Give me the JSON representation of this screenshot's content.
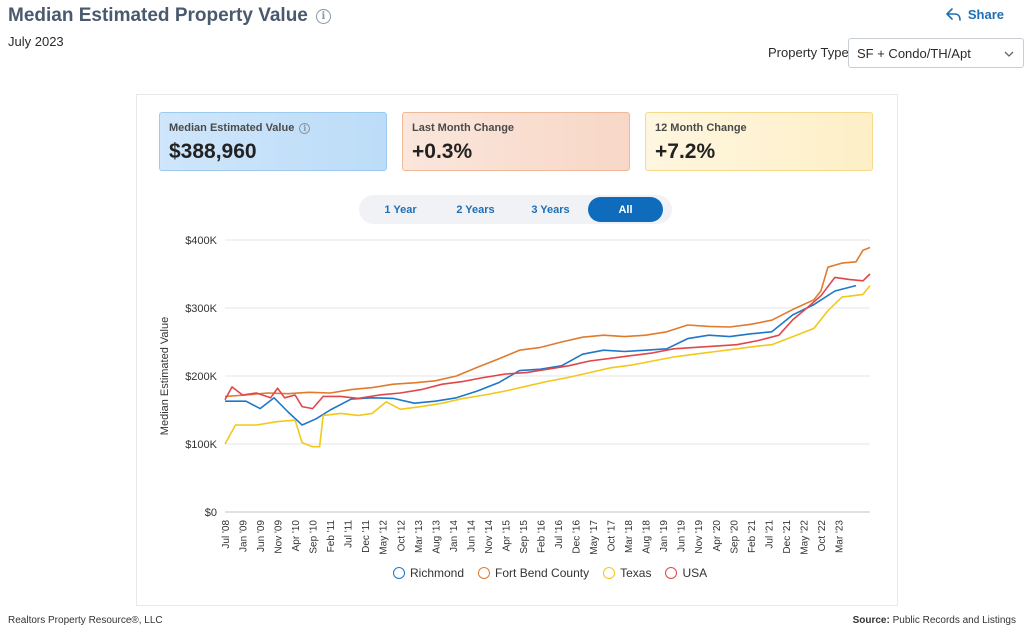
{
  "header": {
    "title": "Median Estimated Property Value",
    "subtitle": "July 2023",
    "share_label": "Share"
  },
  "filter": {
    "label": "Property Type",
    "selected": "SF + Condo/TH/Apt"
  },
  "stats": [
    {
      "label": "Median Estimated Value",
      "value": "$388,960"
    },
    {
      "label": "Last Month Change",
      "value": "+0.3%"
    },
    {
      "label": "12 Month Change",
      "value": "+7.2%"
    }
  ],
  "range_buttons": [
    "1 Year",
    "2 Years",
    "3 Years",
    "All"
  ],
  "range_active": "All",
  "legend": [
    {
      "name": "Richmond",
      "color": "#1f77c7"
    },
    {
      "name": "Fort Bend County",
      "color": "#e07b2e"
    },
    {
      "name": "Texas",
      "color": "#f2c81a"
    },
    {
      "name": "USA",
      "color": "#e0464b"
    }
  ],
  "footer": {
    "left": "Realtors Property Resource®, LLC",
    "source_label": "Source:",
    "source_value": "Public Records and Listings"
  },
  "chart_data": {
    "type": "line",
    "title": "Median Estimated Property Value",
    "xlabel": "",
    "ylabel": "Median Estimated Value",
    "ylim": [
      0,
      400000
    ],
    "yticks": [
      0,
      100000,
      200000,
      300000,
      400000
    ],
    "ytick_labels": [
      "$0",
      "$100K",
      "$200K",
      "$300K",
      "$400K"
    ],
    "xtick_labels": [
      "Jul '08",
      "Jan '09",
      "Jun '09",
      "Nov '09",
      "Apr '10",
      "Sep '10",
      "Feb '11",
      "Jul '11",
      "Dec '11",
      "May '12",
      "Oct '12",
      "Mar '13",
      "Aug '13",
      "Jan '14",
      "Jun '14",
      "Nov '14",
      "Apr '15",
      "Sep '15",
      "Feb '16",
      "Jul '16",
      "Dec '16",
      "May '17",
      "Oct '17",
      "Mar '18",
      "Aug '18",
      "Jan '19",
      "Jun '19",
      "Nov '19",
      "Apr '20",
      "Sep '20",
      "Feb '21",
      "Jul '21",
      "Dec '21",
      "May '22",
      "Oct '22",
      "Mar '23"
    ],
    "x_start": "2008-07",
    "x_end": "2023-07",
    "series": [
      {
        "name": "Richmond",
        "color": "#1f77c7",
        "points": [
          [
            0,
            163000
          ],
          [
            6,
            163000
          ],
          [
            10,
            152000
          ],
          [
            14,
            168000
          ],
          [
            18,
            147000
          ],
          [
            22,
            128000
          ],
          [
            26,
            137000
          ],
          [
            30,
            150000
          ],
          [
            36,
            166000
          ],
          [
            42,
            168000
          ],
          [
            48,
            167000
          ],
          [
            54,
            160000
          ],
          [
            60,
            163000
          ],
          [
            66,
            168000
          ],
          [
            72,
            178000
          ],
          [
            78,
            190000
          ],
          [
            84,
            208000
          ],
          [
            90,
            210000
          ],
          [
            96,
            215000
          ],
          [
            102,
            232000
          ],
          [
            108,
            238000
          ],
          [
            114,
            236000
          ],
          [
            120,
            238000
          ],
          [
            126,
            240000
          ],
          [
            132,
            255000
          ],
          [
            138,
            260000
          ],
          [
            144,
            258000
          ],
          [
            150,
            262000
          ],
          [
            156,
            265000
          ],
          [
            162,
            290000
          ],
          [
            168,
            305000
          ],
          [
            174,
            325000
          ],
          [
            180,
            333000
          ]
        ]
      },
      {
        "name": "Fort Bend County",
        "color": "#e07b2e",
        "points": [
          [
            0,
            170000
          ],
          [
            6,
            172000
          ],
          [
            12,
            175000
          ],
          [
            18,
            174000
          ],
          [
            24,
            176000
          ],
          [
            30,
            175000
          ],
          [
            36,
            180000
          ],
          [
            42,
            183000
          ],
          [
            48,
            188000
          ],
          [
            54,
            190000
          ],
          [
            60,
            193000
          ],
          [
            66,
            200000
          ],
          [
            72,
            213000
          ],
          [
            78,
            225000
          ],
          [
            84,
            238000
          ],
          [
            90,
            242000
          ],
          [
            96,
            250000
          ],
          [
            102,
            257000
          ],
          [
            108,
            260000
          ],
          [
            114,
            258000
          ],
          [
            120,
            260000
          ],
          [
            126,
            265000
          ],
          [
            132,
            275000
          ],
          [
            138,
            273000
          ],
          [
            144,
            272000
          ],
          [
            150,
            276000
          ],
          [
            156,
            282000
          ],
          [
            162,
            298000
          ],
          [
            168,
            312000
          ],
          [
            170,
            325000
          ],
          [
            172,
            360000
          ],
          [
            176,
            366000
          ],
          [
            180,
            368000
          ],
          [
            182,
            385000
          ],
          [
            184,
            388960
          ]
        ]
      },
      {
        "name": "Texas",
        "color": "#f2c81a",
        "points": [
          [
            0,
            100000
          ],
          [
            3,
            128000
          ],
          [
            9,
            128000
          ],
          [
            15,
            133000
          ],
          [
            20,
            135000
          ],
          [
            22,
            102000
          ],
          [
            25,
            96000
          ],
          [
            27,
            96000
          ],
          [
            28,
            142000
          ],
          [
            33,
            145000
          ],
          [
            38,
            142000
          ],
          [
            42,
            145000
          ],
          [
            46,
            162000
          ],
          [
            50,
            151000
          ],
          [
            56,
            155000
          ],
          [
            62,
            160000
          ],
          [
            68,
            167000
          ],
          [
            74,
            172000
          ],
          [
            80,
            178000
          ],
          [
            86,
            185000
          ],
          [
            92,
            192000
          ],
          [
            98,
            198000
          ],
          [
            104,
            205000
          ],
          [
            110,
            212000
          ],
          [
            116,
            216000
          ],
          [
            122,
            222000
          ],
          [
            128,
            228000
          ],
          [
            134,
            232000
          ],
          [
            140,
            236000
          ],
          [
            146,
            240000
          ],
          [
            152,
            244000
          ],
          [
            156,
            246000
          ],
          [
            162,
            258000
          ],
          [
            168,
            270000
          ],
          [
            172,
            296000
          ],
          [
            176,
            316000
          ],
          [
            182,
            320000
          ],
          [
            184,
            333000
          ]
        ]
      },
      {
        "name": "USA",
        "color": "#e0464b",
        "points": [
          [
            0,
            165000
          ],
          [
            2,
            184000
          ],
          [
            5,
            172000
          ],
          [
            9,
            175000
          ],
          [
            13,
            168000
          ],
          [
            15,
            182000
          ],
          [
            17,
            168000
          ],
          [
            20,
            172000
          ],
          [
            22,
            155000
          ],
          [
            25,
            152000
          ],
          [
            28,
            170000
          ],
          [
            33,
            170000
          ],
          [
            38,
            167000
          ],
          [
            44,
            172000
          ],
          [
            50,
            175000
          ],
          [
            56,
            180000
          ],
          [
            62,
            188000
          ],
          [
            68,
            192000
          ],
          [
            74,
            198000
          ],
          [
            80,
            203000
          ],
          [
            86,
            205000
          ],
          [
            92,
            210000
          ],
          [
            98,
            215000
          ],
          [
            104,
            222000
          ],
          [
            110,
            226000
          ],
          [
            116,
            230000
          ],
          [
            122,
            234000
          ],
          [
            128,
            240000
          ],
          [
            134,
            242000
          ],
          [
            140,
            244000
          ],
          [
            146,
            246000
          ],
          [
            152,
            252000
          ],
          [
            158,
            260000
          ],
          [
            162,
            283000
          ],
          [
            166,
            300000
          ],
          [
            170,
            318000
          ],
          [
            174,
            345000
          ],
          [
            178,
            342000
          ],
          [
            182,
            340000
          ],
          [
            184,
            350000
          ]
        ]
      }
    ]
  }
}
